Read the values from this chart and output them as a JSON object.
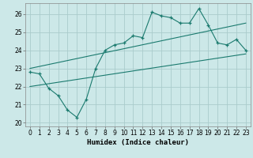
{
  "xlabel": "Humidex (Indice chaleur)",
  "background_color": "#cce8e8",
  "grid_color": "#aacccc",
  "line_color": "#1a7a6e",
  "xlim": [
    -0.5,
    23.5
  ],
  "ylim": [
    19.8,
    26.6
  ],
  "yticks": [
    20,
    21,
    22,
    23,
    24,
    25,
    26
  ],
  "xticks": [
    0,
    1,
    2,
    3,
    4,
    5,
    6,
    7,
    8,
    9,
    10,
    11,
    12,
    13,
    14,
    15,
    16,
    17,
    18,
    19,
    20,
    21,
    22,
    23
  ],
  "main_x": [
    0,
    1,
    2,
    3,
    4,
    5,
    6,
    7,
    8,
    9,
    10,
    11,
    12,
    13,
    14,
    15,
    16,
    17,
    18,
    19,
    20,
    21,
    22,
    23
  ],
  "main_y": [
    22.8,
    22.7,
    21.9,
    21.5,
    20.7,
    20.3,
    21.3,
    23.0,
    24.0,
    24.3,
    24.4,
    24.8,
    24.7,
    26.1,
    25.9,
    25.8,
    25.5,
    25.5,
    26.3,
    25.4,
    24.4,
    24.3,
    24.6,
    24.0
  ],
  "upper_line_x": [
    0,
    23
  ],
  "upper_line_y": [
    23.0,
    25.5
  ],
  "lower_line_x": [
    0,
    23
  ],
  "lower_line_y": [
    22.0,
    23.8
  ],
  "tick_fontsize": 5.5,
  "xlabel_fontsize": 6.5
}
